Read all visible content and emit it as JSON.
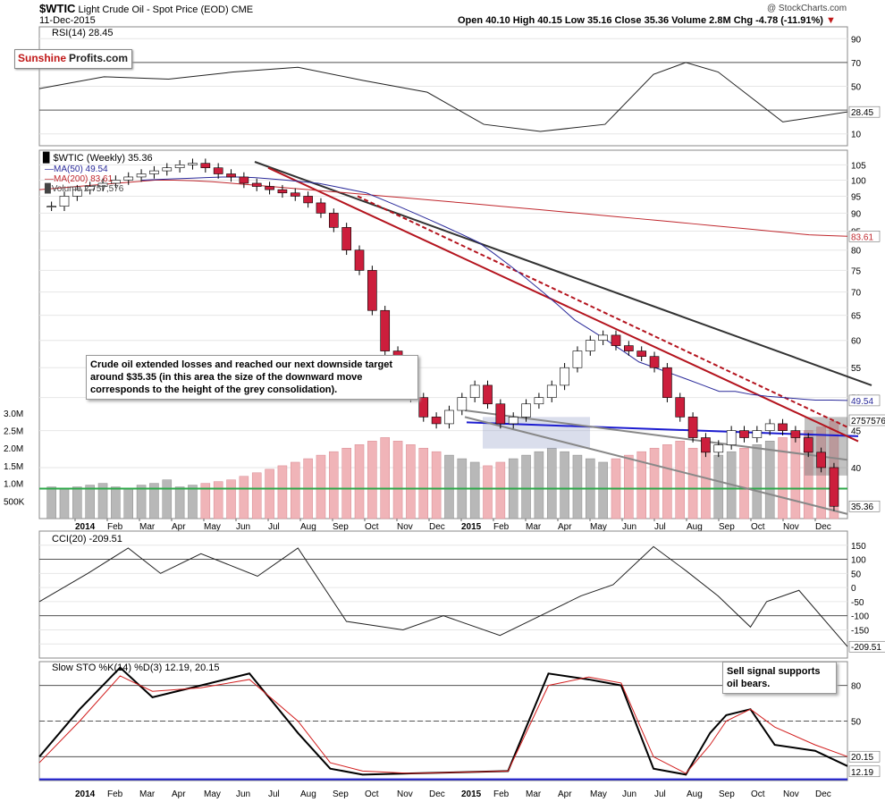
{
  "header": {
    "symbol": "$WTIC",
    "name": "Light Crude Oil - Spot Price (EOD)",
    "exchange": "CME",
    "date": "11-Dec-2015",
    "open_label": "Open",
    "open": "40.10",
    "high_label": "High",
    "high": "40.15",
    "low_label": "Low",
    "low": "35.16",
    "close_label": "Close",
    "close": "35.36",
    "volume_label": "Volume",
    "volume": "2.8M",
    "chg_label": "Chg",
    "chg": "-4.78 (-11.91%)",
    "watermark": "@ StockCharts.com"
  },
  "logo": {
    "part1": "Sunshine",
    "part2": "Profits.com"
  },
  "annotations": {
    "crude_note": "Crude oil extended losses and reached our next downside target around $35.35 (in this area the size of the downward move corresponds to the height of the grey consolidation).",
    "sell_note": "Sell signal supports oil bears."
  },
  "colors": {
    "up_candle": "#ffffff",
    "down_candle": "#cc1e3c",
    "ma50": "#2a2a9a",
    "ma200": "#c0282e",
    "volume_up": "#b8b8b8",
    "volume_down": "#f0b4b8",
    "support_green": "#2ea84a",
    "support_blue": "#1c1cd0",
    "trend_black": "#333333",
    "trend_red": "#b4141e",
    "oversold_fill": "#a06e6e",
    "overbought_fill": "#5e8a5e"
  },
  "chart_data": [
    {
      "type": "line",
      "name": "rsi",
      "label": "RSI(14) 28.45",
      "last_value_tag": "28.45",
      "ylim": [
        0,
        100
      ],
      "y_ticks": [
        "90",
        "70",
        "50",
        "10"
      ],
      "y_tick_values": [
        90,
        70,
        50,
        10
      ],
      "levels": [
        30,
        70
      ],
      "x": [
        0,
        8,
        16,
        24,
        32,
        40,
        48,
        55,
        62,
        70,
        76,
        80,
        84,
        92,
        100
      ],
      "values": [
        48,
        58,
        56,
        62,
        66,
        55,
        45,
        18,
        12,
        18,
        60,
        70,
        62,
        20,
        28.45
      ]
    },
    {
      "type": "candlestick",
      "name": "price",
      "label": "$WTIC (Weekly) 35.36",
      "legend": [
        "MA(50) 49.54",
        "MA(200) 83.61",
        "Volume 2,757,576"
      ],
      "ma50_tag": "49.54",
      "ma200_tag": "83.61",
      "volume_tag": "2757576",
      "close_tag": "35.36",
      "ylim": [
        34,
        110
      ],
      "log_scale": true,
      "y_ticks": [
        "105",
        "100",
        "95",
        "90",
        "85",
        "80",
        "75",
        "70",
        "65",
        "60",
        "55",
        "50",
        "45",
        "40"
      ],
      "y_tick_values": [
        105,
        100,
        95,
        90,
        85,
        80,
        75,
        70,
        65,
        60,
        55,
        50,
        45,
        40
      ],
      "volume_ticks": [
        "3.0M",
        "2.5M",
        "2.0M",
        "1.5M",
        "1.0M",
        "500K"
      ],
      "volume_tick_values": [
        3.0,
        2.5,
        2.0,
        1.5,
        1.0,
        0.5
      ],
      "x_labels": [
        "2014",
        "Feb",
        "Mar",
        "Apr",
        "May",
        "Jun",
        "Jul",
        "Aug",
        "Sep",
        "Oct",
        "Nov",
        "Dec",
        "2015",
        "Feb",
        "Mar",
        "Apr",
        "May",
        "Jun",
        "Jul",
        "Aug",
        "Sep",
        "Oct",
        "Nov",
        "Dec"
      ],
      "closes": [
        92,
        95,
        97,
        98,
        99,
        100,
        101,
        102,
        103,
        104,
        105,
        105.5,
        104,
        102,
        101,
        99,
        98,
        97,
        96,
        95,
        93,
        90,
        86,
        80,
        75,
        66,
        58,
        53,
        50,
        47,
        46,
        48,
        50,
        52,
        49,
        46,
        47,
        49,
        50,
        52,
        55,
        58,
        60,
        61,
        59,
        58,
        57,
        55,
        50,
        47,
        44,
        42,
        43,
        45,
        44,
        45,
        46,
        45,
        44,
        42,
        40,
        35.36
      ],
      "ma50": [
        100,
        100.2,
        100.4,
        100.6,
        100.8,
        101,
        101,
        100.8,
        100.4,
        100,
        99.5,
        99,
        98,
        97,
        96,
        94,
        92,
        90,
        88,
        86,
        84,
        82,
        79,
        76,
        73,
        70,
        67,
        64,
        62,
        60,
        58,
        56,
        55,
        54,
        53,
        52,
        51,
        51,
        50.5,
        50.2,
        50,
        49.8,
        49.6,
        49.6,
        49.54
      ],
      "ma200": [
        97,
        97.5,
        98,
        98.5,
        99,
        99.5,
        100,
        100,
        99.8,
        99.5,
        99,
        98.5,
        98,
        97.5,
        97,
        96.5,
        96,
        95.5,
        95,
        94.5,
        94,
        93.5,
        93,
        92.5,
        92,
        91.5,
        91,
        90.5,
        90,
        89.5,
        89,
        88.5,
        88,
        87.5,
        87,
        86.5,
        86,
        85.5,
        85,
        84.5,
        84,
        83.8,
        83.61
      ],
      "volume_millions": [
        0.9,
        0.85,
        0.9,
        0.95,
        1.0,
        0.9,
        0.85,
        0.95,
        1.0,
        1.1,
        0.9,
        0.95,
        1.0,
        1.05,
        1.1,
        1.2,
        1.3,
        1.4,
        1.5,
        1.6,
        1.7,
        1.8,
        1.9,
        2.0,
        2.1,
        2.2,
        2.3,
        2.2,
        2.1,
        2.0,
        1.9,
        1.8,
        1.7,
        1.6,
        1.5,
        1.6,
        1.7,
        1.8,
        1.9,
        2.0,
        1.9,
        1.8,
        1.7,
        1.6,
        1.7,
        1.8,
        1.9,
        2.0,
        2.1,
        2.2,
        2.0,
        1.9,
        1.8,
        1.9,
        2.0,
        2.1,
        2.2,
        2.3,
        2.4,
        2.5,
        2.6,
        2.757576
      ],
      "support_green_volume": 0.85,
      "support_blue_price": 45.5
    },
    {
      "type": "line",
      "name": "cci",
      "label": "CCI(20) -209.51",
      "last_value_tag": "-209.51",
      "ylim": [
        -250,
        200
      ],
      "y_ticks": [
        "150",
        "100",
        "50",
        "0",
        "-50",
        "-100",
        "-150",
        "-200"
      ],
      "y_tick_values": [
        150,
        100,
        50,
        0,
        -50,
        -100,
        -150,
        -200
      ],
      "levels": [
        -100,
        100
      ],
      "x": [
        0,
        6,
        11,
        15,
        20,
        27,
        32,
        38,
        45,
        50,
        57,
        62,
        67,
        71,
        76,
        80,
        84,
        88,
        90,
        94,
        100
      ],
      "values": [
        -50,
        50,
        140,
        50,
        120,
        40,
        140,
        -120,
        -150,
        -100,
        -170,
        -100,
        -30,
        10,
        145,
        60,
        -30,
        -140,
        -50,
        -10,
        -209.51
      ]
    },
    {
      "type": "line",
      "name": "stochastic",
      "label": "Slow STO %K(14) %D(3) 12.19, 20.15",
      "k_tag": "12.19",
      "d_tag": "20.15",
      "ylim": [
        0,
        100
      ],
      "y_ticks": [
        "80",
        "50",
        "20"
      ],
      "y_tick_values": [
        80,
        50,
        20
      ],
      "levels": [
        20,
        50,
        80
      ],
      "series": [
        {
          "name": "%K",
          "x": [
            0,
            5,
            10,
            14,
            20,
            26,
            32,
            36,
            40,
            46,
            52,
            58,
            63,
            68,
            72,
            76,
            80,
            83,
            85,
            88,
            91,
            96,
            100
          ],
          "values": [
            20,
            60,
            95,
            70,
            80,
            90,
            40,
            10,
            5,
            6,
            7,
            8,
            90,
            85,
            80,
            10,
            5,
            40,
            55,
            60,
            30,
            25,
            12.19
          ]
        },
        {
          "name": "%D",
          "x": [
            0,
            5,
            10,
            14,
            20,
            26,
            32,
            36,
            40,
            46,
            52,
            58,
            63,
            68,
            72,
            76,
            80,
            83,
            85,
            88,
            91,
            96,
            100
          ],
          "values": [
            15,
            50,
            88,
            75,
            78,
            85,
            50,
            15,
            8,
            6,
            7,
            8,
            80,
            87,
            82,
            20,
            6,
            30,
            50,
            60,
            45,
            30,
            20.15
          ]
        }
      ]
    }
  ]
}
